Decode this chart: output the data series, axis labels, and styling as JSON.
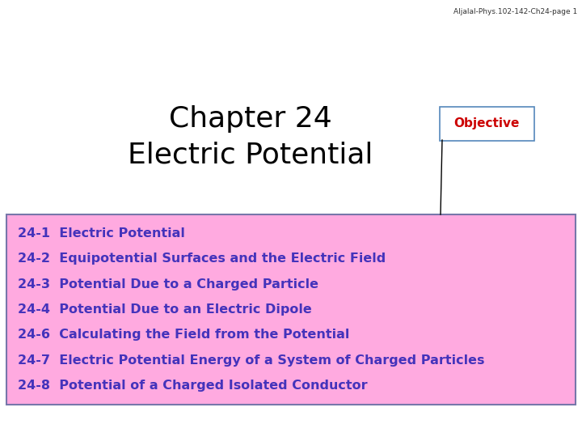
{
  "header_text": "Aljalal-Phys.102-142-Ch24-page 1",
  "title_line1": "Chapter 24",
  "title_line2": "Electric Potential",
  "title_color": "#000000",
  "title_fontsize": 26,
  "objective_label": "Objective",
  "objective_text_color": "#cc0000",
  "objective_box_edgecolor": "#5588bb",
  "items": [
    "24-1  Electric Potential",
    "24-2  Equipotential Surfaces and the Electric Field",
    "24-3  Potential Due to a Charged Particle",
    "24-4  Potential Due to an Electric Dipole",
    "24-6  Calculating the Field from the Potential",
    "24-7  Electric Potential Energy of a System of Charged Particles",
    "24-8  Potential of a Charged Isolated Conductor"
  ],
  "item_color": "#4433bb",
  "item_fontsize": 11.5,
  "box_bg_color": "#ffaae0",
  "box_border_color": "#7777aa",
  "background_color": "#ffffff",
  "header_fontsize": 6.5,
  "header_color": "#333333"
}
